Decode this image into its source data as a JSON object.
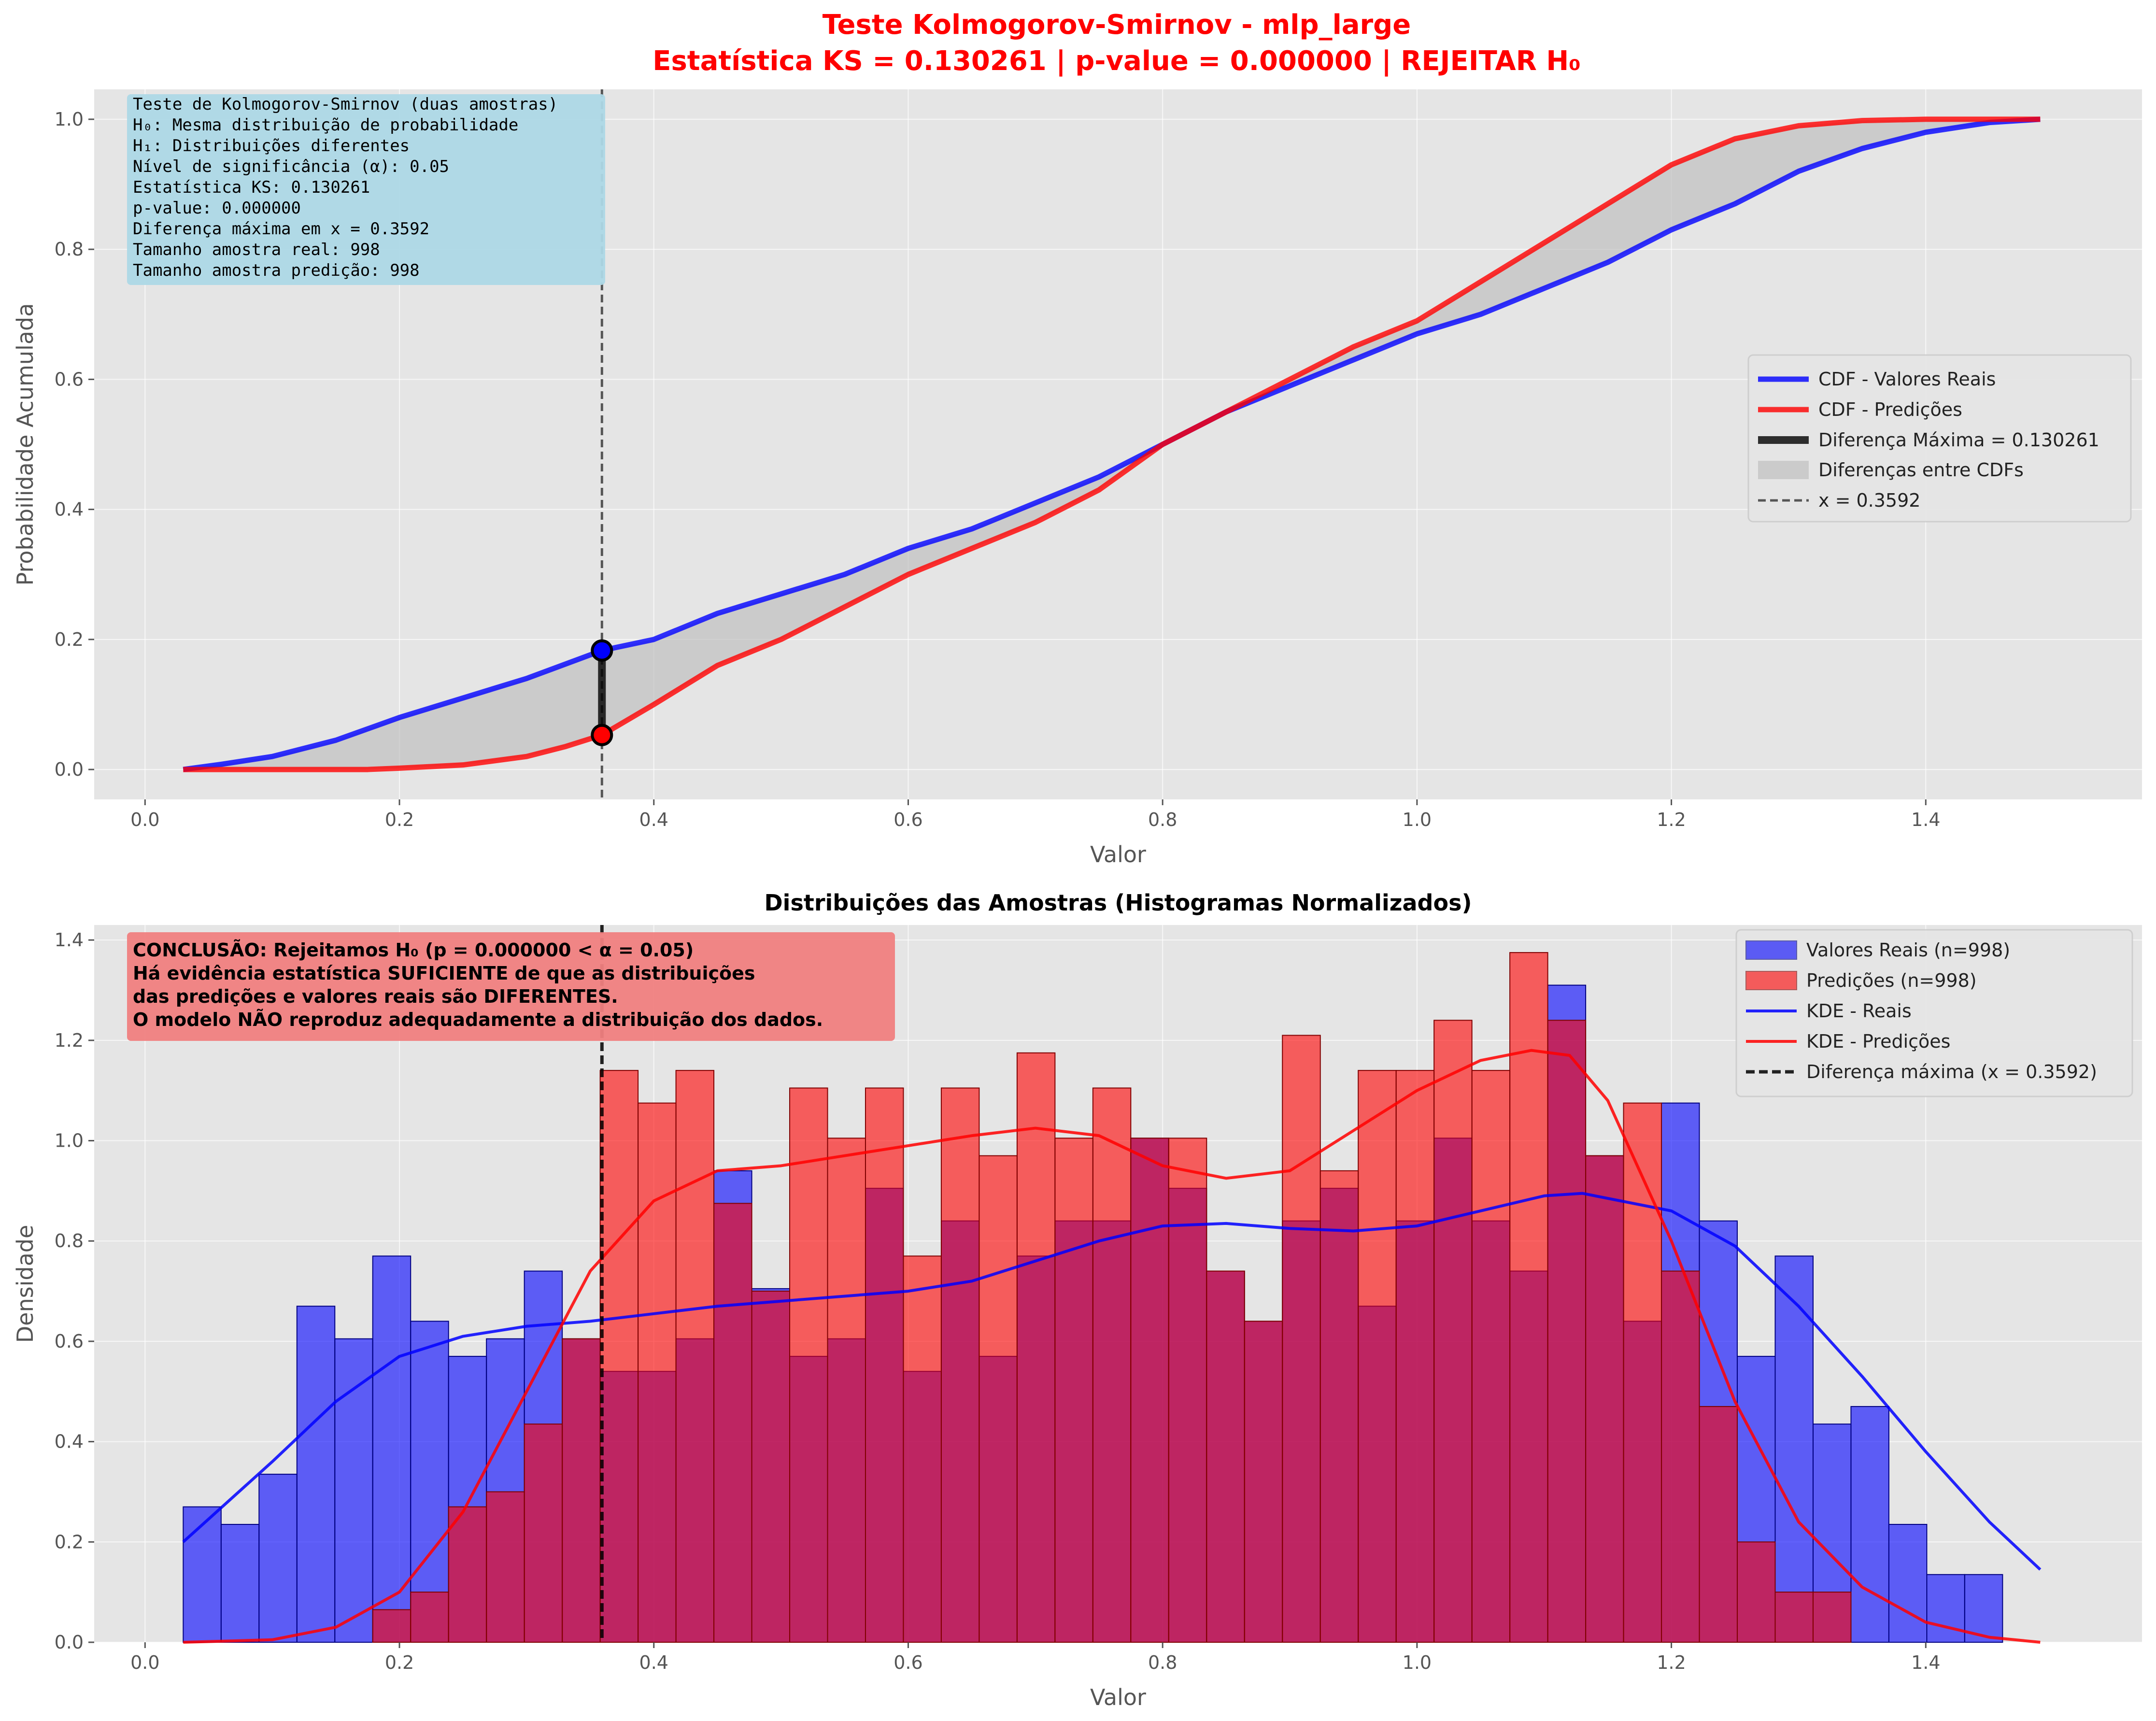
{
  "figure": {
    "title_line1": "Teste Kolmogorov-Smirnov - mlp_large",
    "title_line2": "Estatística KS = 0.130261 | p-value = 0.000000 | REJEITAR H₀",
    "title_color": "#ff0000"
  },
  "colors": {
    "real": "#0000ff",
    "pred": "#ff0000",
    "diff": "#000000",
    "fill": "#c0c0c0",
    "panel_bg": "#e5e5e5",
    "grid": "#ffffff",
    "info_box": "#add8e6",
    "conclusion_box": "#f08080"
  },
  "chart_data": [
    {
      "type": "line",
      "title": "",
      "xlabel": "Valor",
      "ylabel": "Probabilidade Acumulada",
      "xlim": [
        -0.04,
        1.57
      ],
      "ylim": [
        -0.046,
        1.046
      ],
      "xticks": [
        0.0,
        0.2,
        0.4,
        0.6,
        0.8,
        1.0,
        1.2,
        1.4
      ],
      "xtick_labels": [
        "0.0",
        "0.2",
        "0.4",
        "0.6",
        "0.8",
        "1.0",
        "1.2",
        "1.4"
      ],
      "yticks": [
        0.0,
        0.2,
        0.4,
        0.6,
        0.8,
        1.0
      ],
      "ytick_labels": [
        "0.0",
        "0.2",
        "0.4",
        "0.6",
        "0.8",
        "1.0"
      ],
      "grid": true,
      "legend_position": "center-right",
      "series": [
        {
          "name": "CDF - Valores Reais",
          "x": [
            0.03,
            0.06,
            0.1,
            0.15,
            0.2,
            0.25,
            0.3,
            0.3592,
            0.4,
            0.45,
            0.5,
            0.55,
            0.6,
            0.65,
            0.7,
            0.75,
            0.8,
            0.85,
            0.9,
            0.95,
            1.0,
            1.05,
            1.1,
            1.15,
            1.2,
            1.25,
            1.3,
            1.35,
            1.4,
            1.45,
            1.49
          ],
          "values": [
            0.0,
            0.008,
            0.02,
            0.045,
            0.08,
            0.11,
            0.14,
            0.183,
            0.2,
            0.24,
            0.27,
            0.3,
            0.34,
            0.37,
            0.41,
            0.45,
            0.5,
            0.55,
            0.59,
            0.63,
            0.67,
            0.7,
            0.74,
            0.78,
            0.83,
            0.87,
            0.92,
            0.955,
            0.98,
            0.995,
            1.0
          ]
        },
        {
          "name": "CDF - Predições",
          "x": [
            0.03,
            0.1,
            0.175,
            0.2,
            0.25,
            0.3,
            0.33,
            0.3592,
            0.4,
            0.45,
            0.5,
            0.55,
            0.6,
            0.65,
            0.7,
            0.75,
            0.8,
            0.85,
            0.9,
            0.95,
            1.0,
            1.05,
            1.1,
            1.15,
            1.2,
            1.25,
            1.3,
            1.35,
            1.4,
            1.45,
            1.49
          ],
          "values": [
            0.0,
            0.0,
            0.0,
            0.002,
            0.007,
            0.02,
            0.035,
            0.053,
            0.1,
            0.16,
            0.2,
            0.25,
            0.3,
            0.34,
            0.38,
            0.43,
            0.5,
            0.55,
            0.6,
            0.65,
            0.69,
            0.75,
            0.81,
            0.87,
            0.93,
            0.97,
            0.99,
            0.998,
            1.0,
            1.0,
            1.0
          ]
        }
      ],
      "max_difference": {
        "x": 0.3592,
        "y_real": 0.183,
        "y_pred": 0.053,
        "value": 0.130261
      },
      "legend": [
        "CDF - Valores Reais",
        "CDF - Predições",
        "Diferença Máxima = 0.130261",
        "Diferenças entre CDFs",
        "x = 0.3592"
      ],
      "info_box": [
        "Teste de Kolmogorov-Smirnov (duas amostras)",
        "H₀: Mesma distribuição de probabilidade",
        "H₁: Distribuições diferentes",
        "Nível de significância (α): 0.05",
        "Estatística KS: 0.130261",
        "p-value: 0.000000",
        "Diferença máxima em x = 0.3592",
        "Tamanho amostra real: 998",
        "Tamanho amostra predição: 998"
      ]
    },
    {
      "type": "bar",
      "title": "Distribuições das Amostras (Histogramas Normalizados)",
      "xlabel": "Valor",
      "ylabel": "Densidade",
      "xlim": [
        -0.04,
        1.57
      ],
      "ylim": [
        0.0,
        1.43
      ],
      "xticks": [
        0.0,
        0.2,
        0.4,
        0.6,
        0.8,
        1.0,
        1.2,
        1.4
      ],
      "xtick_labels": [
        "0.0",
        "0.2",
        "0.4",
        "0.6",
        "0.8",
        "1.0",
        "1.2",
        "1.4"
      ],
      "yticks": [
        0.0,
        0.2,
        0.4,
        0.6,
        0.8,
        1.0,
        1.2,
        1.4
      ],
      "ytick_labels": [
        "0.0",
        "0.2",
        "0.4",
        "0.6",
        "0.8",
        "1.0",
        "1.2",
        "1.4"
      ],
      "grid": true,
      "legend_position": "top-right",
      "bin_start": 0.03,
      "bin_width": 0.0298,
      "series": [
        {
          "name": "Valores Reais (n=998)",
          "values": [
            0.27,
            0.235,
            0.335,
            0.67,
            0.605,
            0.77,
            0.64,
            0.57,
            0.605,
            0.74,
            0.605,
            0.54,
            0.54,
            0.605,
            0.94,
            0.705,
            0.57,
            0.605,
            0.905,
            0.54,
            0.84,
            0.57,
            0.77,
            0.84,
            0.84,
            1.005,
            0.905,
            0.74,
            0.64,
            0.84,
            0.905,
            0.67,
            0.84,
            1.005,
            0.84,
            0.74,
            1.31,
            0.97,
            0.64,
            1.075,
            0.84,
            0.57,
            0.77,
            0.435,
            0.47,
            0.235,
            0.135,
            0.135
          ]
        },
        {
          "name": "Predições (n=998)",
          "values": [
            0.0,
            0.0,
            0.0,
            0.0,
            0.0,
            0.065,
            0.1,
            0.27,
            0.3,
            0.435,
            0.605,
            1.14,
            1.075,
            1.14,
            0.875,
            0.7,
            1.105,
            1.005,
            1.105,
            0.77,
            1.105,
            0.97,
            1.175,
            1.005,
            1.105,
            1.005,
            1.005,
            0.74,
            0.64,
            1.21,
            0.94,
            1.14,
            1.14,
            1.24,
            1.14,
            1.375,
            1.24,
            0.97,
            1.075,
            0.74,
            0.47,
            0.2,
            0.1,
            0.1,
            0.0,
            0.0,
            0.0,
            0.0
          ]
        }
      ],
      "kde": [
        {
          "name": "KDE - Reais",
          "x": [
            0.03,
            0.1,
            0.15,
            0.2,
            0.25,
            0.3,
            0.35,
            0.4,
            0.45,
            0.5,
            0.55,
            0.6,
            0.65,
            0.7,
            0.75,
            0.8,
            0.85,
            0.9,
            0.95,
            1.0,
            1.05,
            1.1,
            1.13,
            1.2,
            1.25,
            1.3,
            1.35,
            1.4,
            1.45,
            1.49
          ],
          "values": [
            0.2,
            0.36,
            0.48,
            0.57,
            0.61,
            0.63,
            0.64,
            0.655,
            0.67,
            0.68,
            0.69,
            0.7,
            0.72,
            0.76,
            0.8,
            0.83,
            0.835,
            0.825,
            0.82,
            0.83,
            0.86,
            0.89,
            0.895,
            0.86,
            0.79,
            0.67,
            0.53,
            0.38,
            0.24,
            0.145
          ]
        },
        {
          "name": "KDE - Predições",
          "x": [
            0.03,
            0.1,
            0.15,
            0.2,
            0.25,
            0.3,
            0.35,
            0.4,
            0.45,
            0.5,
            0.55,
            0.6,
            0.65,
            0.7,
            0.75,
            0.8,
            0.85,
            0.9,
            0.95,
            1.0,
            1.05,
            1.09,
            1.12,
            1.15,
            1.2,
            1.25,
            1.3,
            1.35,
            1.4,
            1.45,
            1.49
          ],
          "values": [
            0.0,
            0.005,
            0.03,
            0.1,
            0.26,
            0.5,
            0.74,
            0.88,
            0.94,
            0.95,
            0.97,
            0.99,
            1.01,
            1.025,
            1.01,
            0.95,
            0.925,
            0.94,
            1.02,
            1.1,
            1.16,
            1.18,
            1.17,
            1.08,
            0.8,
            0.48,
            0.24,
            0.11,
            0.04,
            0.01,
            0.0
          ]
        }
      ],
      "max_difference_x": 0.3592,
      "legend": [
        "Valores Reais (n=998)",
        "Predições (n=998)",
        "KDE - Reais",
        "KDE - Predições",
        "Diferença máxima (x = 0.3592)"
      ],
      "conclusion_box": [
        "CONCLUSÃO: Rejeitamos H₀ (p = 0.000000 < α = 0.05)",
        "Há evidência estatística SUFICIENTE de que as distribuições",
        "das predições e valores reais são DIFERENTES.",
        "O modelo NÃO reproduz adequadamente a distribuição dos dados."
      ]
    }
  ]
}
